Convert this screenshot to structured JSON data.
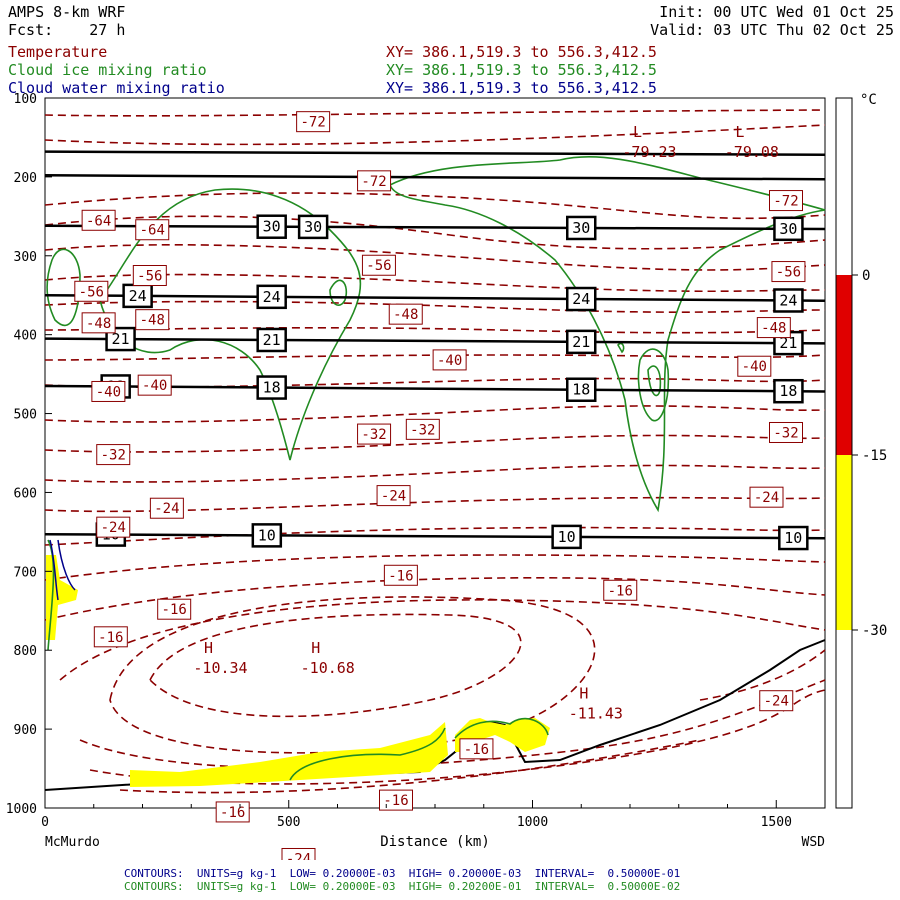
{
  "header": {
    "model": "AMPS 8-km WRF",
    "forecast": "Fcst:    27 h",
    "init": "Init: 00 UTC Wed 01 Oct 25",
    "valid": "Valid: 03 UTC Thu 02 Oct 25"
  },
  "fields": [
    {
      "name": "Temperature",
      "xy": "XY= 386.1,519.3 to 556.3,412.5",
      "color": "#8b0000"
    },
    {
      "name": "Cloud ice mixing ratio",
      "xy": "XY= 386.1,519.3 to 556.3,412.5",
      "color": "#228b22"
    },
    {
      "name": "Cloud water mixing ratio",
      "xy": "XY= 386.1,519.3 to 556.3,412.5",
      "color": "#00008b"
    }
  ],
  "footer": {
    "line1": "CONTOURS:  UNITS=g kg-1  LOW= 0.20000E-03  HIGH= 0.20000E-03  INTERVAL=  0.50000E-01",
    "line2": "CONTOURS:  UNITS=g kg-1  LOW= 0.20000E-03  HIGH= 0.20200E-01  INTERVAL=  0.50000E-02"
  },
  "chart_data": {
    "type": "contour",
    "xlabel": "Distance (km)",
    "x_start_label": "McMurdo",
    "x_end_label": "WSD",
    "xlim": [
      0,
      1600
    ],
    "x_ticks": [
      0,
      500,
      1000,
      1500
    ],
    "ylim": [
      1000,
      100
    ],
    "y_ticks": [
      100,
      200,
      300,
      400,
      500,
      600,
      700,
      800,
      900,
      1000
    ],
    "colorbar": {
      "unit": "°C",
      "ticks": [
        0,
        -15,
        -30
      ],
      "bands": [
        {
          "from": 0,
          "to": -15,
          "color": "#e00000"
        },
        {
          "from": -15,
          "to": -30,
          "color": "#ffff00"
        }
      ]
    },
    "theta_lines": [
      {
        "value": "30",
        "p_left": 262,
        "p_right": 266,
        "labels_x": [
          465,
          550,
          1100,
          1525
        ]
      },
      {
        "value": "24",
        "p_left": 350,
        "p_right": 357,
        "labels_x": [
          190,
          465,
          1100,
          1525
        ]
      },
      {
        "value": "21",
        "p_left": 405,
        "p_right": 411,
        "labels_x": [
          155,
          465,
          1100,
          1525
        ]
      },
      {
        "value": "18",
        "p_left": 465,
        "p_right": 472,
        "labels_x": [
          145,
          465,
          1100,
          1525
        ]
      },
      {
        "value": "10",
        "p_left": 653,
        "p_right": 658,
        "labels_x": [
          135,
          455,
          1070,
          1535
        ]
      }
    ],
    "theta_unlabeled_lines": [
      {
        "p_left": 168,
        "p_right": 172
      },
      {
        "p_left": 198,
        "p_right": 203
      }
    ],
    "temp_labels": [
      {
        "text": "-72",
        "x": 550,
        "p": 130
      },
      {
        "text": "-72",
        "x": 675,
        "p": 205
      },
      {
        "text": "-72",
        "x": 1520,
        "p": 230
      },
      {
        "text": "-64",
        "x": 110,
        "p": 255
      },
      {
        "text": "-64",
        "x": 220,
        "p": 267
      },
      {
        "text": "-56",
        "x": 215,
        "p": 325
      },
      {
        "text": "-56",
        "x": 95,
        "p": 345
      },
      {
        "text": "-56",
        "x": 685,
        "p": 312
      },
      {
        "text": "-56",
        "x": 1525,
        "p": 320
      },
      {
        "text": "-48",
        "x": 110,
        "p": 385
      },
      {
        "text": "-48",
        "x": 220,
        "p": 381
      },
      {
        "text": "-48",
        "x": 740,
        "p": 374
      },
      {
        "text": "-48",
        "x": 1495,
        "p": 391
      },
      {
        "text": "-40",
        "x": 130,
        "p": 472
      },
      {
        "text": "-40",
        "x": 225,
        "p": 464
      },
      {
        "text": "-40",
        "x": 830,
        "p": 432
      },
      {
        "text": "-40",
        "x": 1455,
        "p": 440
      },
      {
        "text": "-32",
        "x": 140,
        "p": 552
      },
      {
        "text": "-32",
        "x": 675,
        "p": 526
      },
      {
        "text": "-32",
        "x": 775,
        "p": 520
      },
      {
        "text": "-32",
        "x": 1520,
        "p": 524
      },
      {
        "text": "-24",
        "x": 140,
        "p": 644
      },
      {
        "text": "-24",
        "x": 250,
        "p": 620
      },
      {
        "text": "-24",
        "x": 715,
        "p": 604
      },
      {
        "text": "-24",
        "x": 1480,
        "p": 606
      },
      {
        "text": "-16",
        "x": 135,
        "p": 783
      },
      {
        "text": "-16",
        "x": 265,
        "p": 748
      },
      {
        "text": "-16",
        "x": 730,
        "p": 705
      },
      {
        "text": "-16",
        "x": 1180,
        "p": 724
      },
      {
        "text": "-16",
        "x": 385,
        "p": 1005
      },
      {
        "text": "-16",
        "x": 720,
        "p": 990
      },
      {
        "text": "-16",
        "x": 885,
        "p": 925
      },
      {
        "text": "-24",
        "x": 520,
        "p": 1064
      },
      {
        "text": "-24",
        "x": 1500,
        "p": 864
      }
    ],
    "extrema": [
      {
        "type": "L",
        "value": "-79.23",
        "x": 1240,
        "p": 157
      },
      {
        "type": "L",
        "value": "-79.08",
        "x": 1450,
        "p": 157
      },
      {
        "type": "H",
        "value": "-10.34",
        "x": 360,
        "p": 811
      },
      {
        "type": "H",
        "value": "-10.68",
        "x": 580,
        "p": 811
      },
      {
        "type": "H",
        "value": "-11.43",
        "x": 1130,
        "p": 869
      }
    ]
  }
}
